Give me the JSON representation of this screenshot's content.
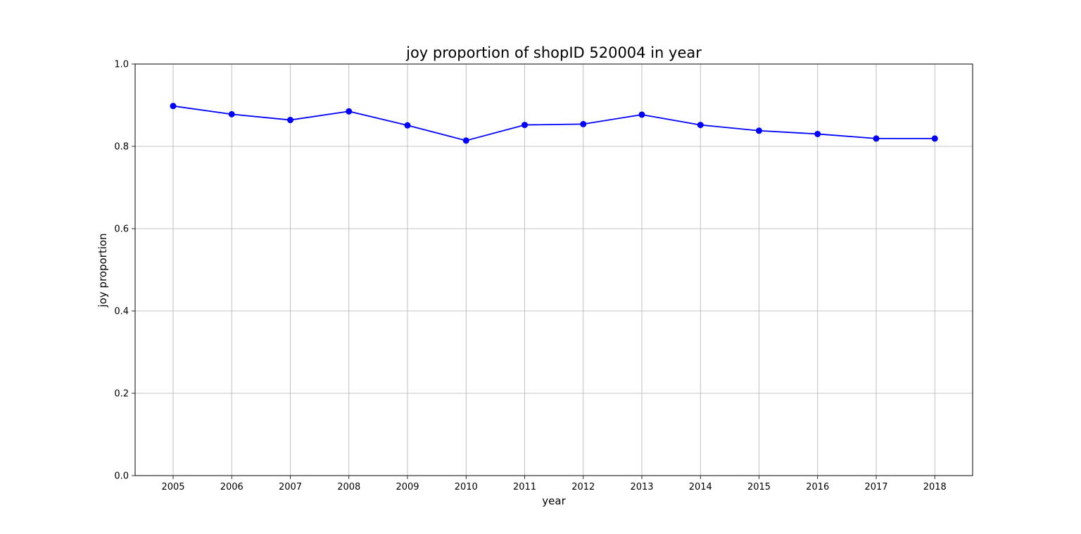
{
  "chart_data": {
    "type": "line",
    "title": "joy proportion of shopID 520004 in year",
    "xlabel": "year",
    "ylabel": "joy proportion",
    "x": [
      2005,
      2006,
      2007,
      2008,
      2009,
      2010,
      2011,
      2012,
      2013,
      2014,
      2015,
      2016,
      2017,
      2018
    ],
    "x_tick_labels": [
      "2005",
      "2006",
      "2007",
      "2008",
      "2009",
      "2010",
      "2011",
      "2012",
      "2013",
      "2014",
      "2015",
      "2016",
      "2017",
      "2018"
    ],
    "y_ticks": [
      0.0,
      0.2,
      0.4,
      0.6,
      0.8,
      1.0
    ],
    "y_tick_labels": [
      "0.0",
      "0.2",
      "0.4",
      "0.6",
      "0.8",
      "1.0"
    ],
    "ylim": [
      0,
      1
    ],
    "grid": true,
    "series": [
      {
        "values": [
          0.898,
          0.878,
          0.864,
          0.885,
          0.851,
          0.814,
          0.852,
          0.854,
          0.877,
          0.852,
          0.838,
          0.83,
          0.819,
          0.819
        ],
        "color": "#0000ff",
        "marker": "circle"
      }
    ]
  }
}
